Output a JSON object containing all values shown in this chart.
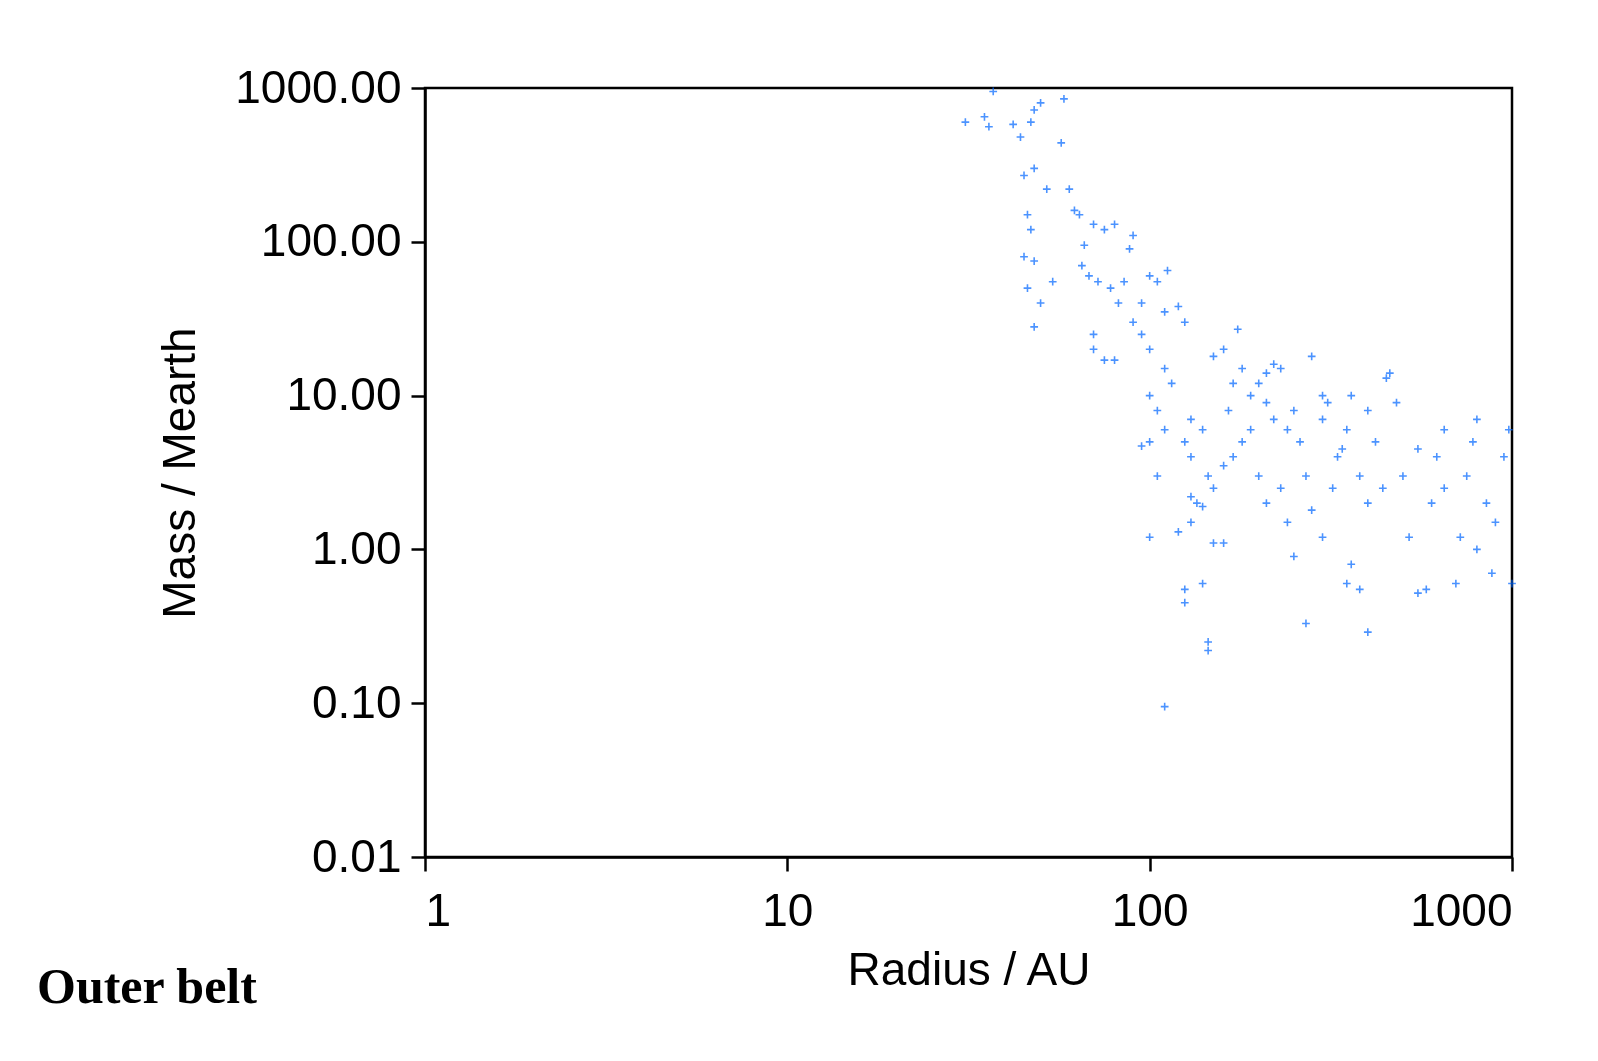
{
  "chart_data": {
    "type": "scatter",
    "xlabel": "Radius / AU",
    "ylabel": "Mass / Mearth",
    "log": "xy",
    "marker": "cross",
    "grid": false,
    "xlim": [
      1,
      1000
    ],
    "ylim": [
      0.01,
      1000
    ],
    "xticks": [
      1,
      10,
      100,
      1000
    ],
    "yticks": [
      {
        "value": 0.01,
        "label": "0.01"
      },
      {
        "value": 0.1,
        "label": "0.10"
      },
      {
        "value": 1,
        "label": "1.00"
      },
      {
        "value": 10,
        "label": "10.00"
      },
      {
        "value": 100,
        "label": "100.00"
      },
      {
        "value": 1000,
        "label": "1000.00"
      }
    ],
    "annotations": [
      "Outer belt"
    ],
    "series": [
      {
        "color": "#0066ff",
        "x": [
          31,
          35,
          36,
          37,
          42,
          44,
          47,
          48,
          50,
          58,
          57,
          45,
          48,
          52,
          46,
          47,
          45,
          48,
          46,
          50,
          48,
          54,
          60,
          62,
          64,
          70,
          75,
          80,
          66,
          65,
          68,
          72,
          78,
          85,
          90,
          88,
          95,
          100,
          105,
          112,
          70,
          70,
          75,
          80,
          82,
          90,
          95,
          100,
          110,
          120,
          125,
          110,
          115,
          100,
          105,
          110,
          100,
          95,
          105,
          130,
          125,
          130,
          140,
          145,
          135,
          150,
          140,
          130,
          120,
          100,
          125,
          125,
          140,
          145,
          145,
          110,
          150,
          160,
          165,
          170,
          180,
          150,
          160,
          175,
          190,
          200,
          210,
          220,
          230,
          250,
          260,
          270,
          280,
          300,
          330,
          350,
          180,
          200,
          210,
          240,
          250,
          270,
          300,
          320,
          350,
          380,
          360,
          400,
          400,
          420,
          450,
          460,
          480,
          500,
          520,
          550,
          580,
          600,
          620,
          650,
          700,
          720,
          750,
          780,
          800,
          850,
          880,
          900,
          950,
          980,
          1000,
          230,
          280,
          220,
          170,
          190,
          210,
          240,
          310,
          340,
          380,
          550,
          650,
          440,
          800,
          300,
          360,
          400,
          130,
          160
        ],
        "values": [
          600,
          650,
          560,
          950,
          580,
          480,
          600,
          720,
          800,
          850,
          440,
          270,
          300,
          220,
          150,
          120,
          80,
          75,
          50,
          40,
          28,
          55,
          220,
          160,
          150,
          130,
          120,
          130,
          95,
          70,
          60,
          55,
          50,
          55,
          110,
          90,
          40,
          60,
          55,
          65,
          25,
          20,
          17,
          17,
          40,
          30,
          25,
          20,
          35,
          38,
          30,
          15,
          12,
          10,
          8,
          6,
          5,
          4.7,
          3,
          7,
          5,
          4,
          6,
          3,
          2,
          2.5,
          1.9,
          1.5,
          1.3,
          1.2,
          0.55,
          0.45,
          0.6,
          0.25,
          0.22,
          0.095,
          1.1,
          1.1,
          8,
          12,
          15,
          18,
          20,
          27,
          10,
          12,
          14,
          16,
          15,
          8,
          5,
          3,
          18,
          7,
          4,
          6,
          5,
          3,
          2,
          1.5,
          0.9,
          0.33,
          1.2,
          2.5,
          0.6,
          0.55,
          0.8,
          0.29,
          2,
          5,
          13,
          14,
          9,
          3,
          1.2,
          0.52,
          0.55,
          2,
          4,
          6,
          0.6,
          1.2,
          3,
          5,
          7,
          2,
          0.7,
          1.5,
          4,
          6,
          0.6,
          2.5,
          1.8,
          7,
          4,
          6,
          9,
          6,
          9,
          4.5,
          3,
          4.5,
          2.5,
          2.5,
          1,
          10,
          10,
          8,
          2.2,
          3.5
        ]
      }
    ]
  }
}
